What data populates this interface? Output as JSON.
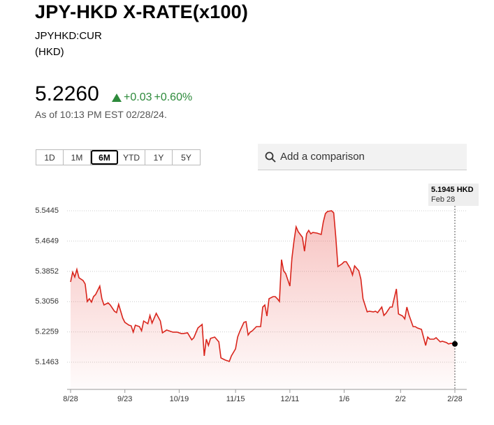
{
  "header": {
    "title": "JPY-HKD X-RATE(x100)",
    "symbol": "JPYHKD:CUR",
    "currency": "(HKD)"
  },
  "quote": {
    "price": "5.2260",
    "change": "+0.03",
    "change_pct": "+0.60%",
    "as_of": "As of 10:13 PM EST 02/28/24."
  },
  "range_buttons": [
    "1D",
    "1M",
    "6M",
    "YTD",
    "1Y",
    "5Y"
  ],
  "selected_range": "6M",
  "search": {
    "placeholder": "Add a comparison"
  },
  "chart_data": {
    "type": "area",
    "color": "#d9251c",
    "grid": true,
    "annotations": [
      {
        "text": "5.1945 HKD"
      },
      {
        "text": "Feb 28"
      }
    ],
    "xlim": [
      0,
      184
    ],
    "xticks": [
      {
        "value": 0,
        "label": "8/28"
      },
      {
        "value": 26,
        "label": "9/23"
      },
      {
        "value": 52,
        "label": "10/19"
      },
      {
        "value": 79,
        "label": "11/15"
      },
      {
        "value": 105,
        "label": "12/11"
      },
      {
        "value": 131,
        "label": "1/6"
      },
      {
        "value": 158,
        "label": "2/2"
      },
      {
        "value": 184,
        "label": "2/28"
      }
    ],
    "ylim": [
      5.0748,
      5.6
    ],
    "yticks": [
      5.1463,
      5.2259,
      5.3056,
      5.3852,
      5.4649,
      5.5445
    ],
    "x": [
      0,
      1,
      2,
      3,
      4,
      6,
      7,
      8,
      9,
      10,
      11,
      12,
      14,
      15,
      16,
      18,
      19,
      21,
      22,
      23,
      25,
      26,
      28,
      29,
      30,
      31,
      33,
      34,
      35,
      37,
      38,
      39,
      41,
      43,
      44,
      46,
      48,
      49,
      51,
      53,
      54,
      56,
      58,
      59,
      61,
      63,
      64,
      65,
      66,
      67,
      69,
      71,
      72,
      74,
      76,
      77,
      79,
      80,
      81,
      83,
      84,
      85,
      86,
      87,
      89,
      91,
      92,
      93,
      94,
      95,
      97,
      98,
      99,
      100,
      101,
      102,
      103,
      105,
      106,
      107,
      108,
      109,
      111,
      112,
      113,
      114,
      115,
      116,
      118,
      120,
      121,
      122,
      123,
      125,
      126,
      127,
      128,
      130,
      131,
      132,
      134,
      135,
      136,
      138,
      139,
      140,
      142,
      143,
      145,
      146,
      147,
      149,
      150,
      151,
      153,
      154,
      155,
      156,
      157,
      159,
      160,
      161,
      162,
      164,
      165,
      166,
      168,
      170,
      171,
      172,
      174,
      175,
      177,
      178,
      180,
      181,
      182,
      184
    ],
    "values": [
      5.3574,
      5.3831,
      5.3703,
      5.3904,
      5.3684,
      5.3611,
      5.3519,
      5.3061,
      5.3134,
      5.3043,
      5.3189,
      5.3244,
      5.3464,
      5.3134,
      5.2969,
      5.3024,
      5.2969,
      5.2804,
      5.2767,
      5.2987,
      5.2621,
      5.2511,
      5.2437,
      5.2419,
      5.2254,
      5.2437,
      5.24,
      5.229,
      5.2547,
      5.2474,
      5.2694,
      5.2492,
      5.2749,
      5.2547,
      5.2236,
      5.2309,
      5.2272,
      5.2254,
      5.2254,
      5.2217,
      5.2217,
      5.2236,
      5.2052,
      5.2107,
      5.2364,
      5.2456,
      5.163,
      5.207,
      5.1905,
      5.2089,
      5.2125,
      5.1997,
      5.1575,
      5.152,
      5.1484,
      5.163,
      5.1814,
      5.2125,
      5.2272,
      5.2511,
      5.2529,
      5.218,
      5.2254,
      5.229,
      5.24,
      5.24,
      5.2914,
      5.2969,
      5.2676,
      5.3134,
      5.3189,
      5.3189,
      5.3134,
      5.3061,
      5.4161,
      5.3868,
      5.3795,
      5.3464,
      5.4198,
      5.4656,
      5.5023,
      5.4895,
      5.4748,
      5.4381,
      5.484,
      5.4931,
      5.484,
      5.4876,
      5.4858,
      5.4821,
      5.5152,
      5.5372,
      5.5427,
      5.5445,
      5.539,
      5.4748,
      5.3978,
      5.4051,
      5.4106,
      5.4106,
      5.3923,
      5.3758,
      5.3996,
      5.3868,
      5.3648,
      5.3134,
      5.2786,
      5.2804,
      5.2786,
      5.2804,
      5.2767,
      5.2914,
      5.2694,
      5.2749,
      5.2914,
      5.2914,
      5.3153,
      5.3391,
      5.2731,
      5.2676,
      5.2602,
      5.2914,
      5.2712,
      5.24,
      5.24,
      5.2364,
      5.2327,
      5.1905,
      5.2125,
      5.207,
      5.207,
      5.2107,
      5.1997,
      5.2015,
      5.1979,
      5.1942,
      5.196,
      5.1945
    ]
  }
}
